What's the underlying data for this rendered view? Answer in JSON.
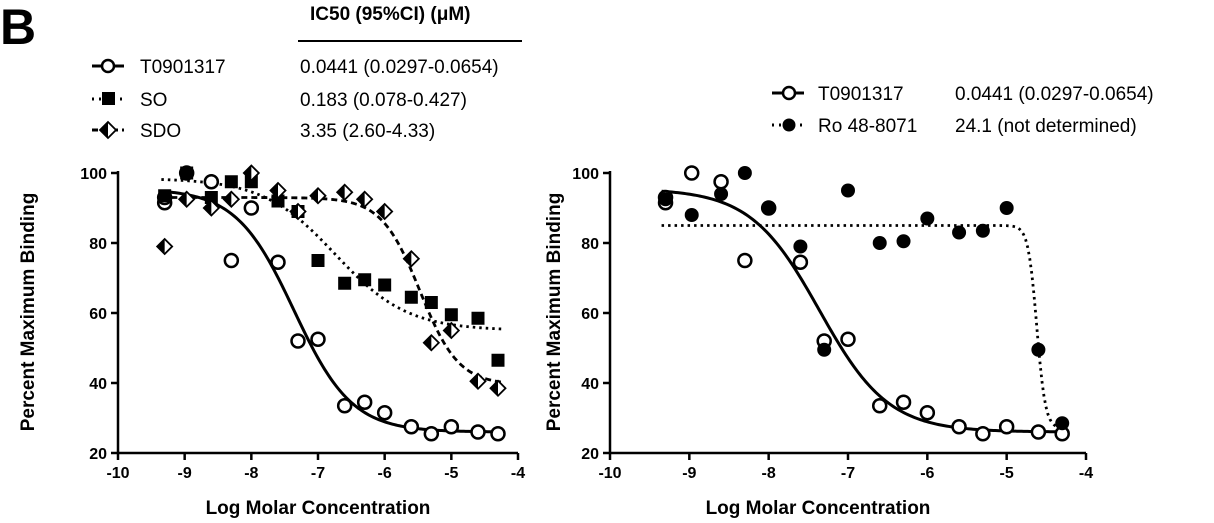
{
  "figure": {
    "panel_label": "B",
    "table_header": "IC50 (95%CI) (μM)"
  },
  "chart_data": [
    {
      "type": "scatter",
      "xlabel": "Log Molar Concentration",
      "ylabel": "Percent Maximum Binding",
      "xlim": [
        -10,
        -4
      ],
      "ylim": [
        20,
        100
      ],
      "xticks": [
        "-10",
        "-9",
        "-8",
        "-7",
        "-6",
        "-5",
        "-4"
      ],
      "yticks": [
        "20",
        "40",
        "60",
        "80",
        "100"
      ],
      "grid": false,
      "legend_position": "top",
      "series": [
        {
          "name": "T0901317",
          "ic50_text": "0.0441 (0.0297-0.0654)",
          "marker": "open-circle",
          "line": "solid",
          "fit": {
            "top": 95.5,
            "bottom": 26.0,
            "logIC50": -7.36,
            "hill": 1.0
          },
          "x": [
            -9.3,
            -9.3,
            -8.97,
            -8.6,
            -8.3,
            -8.0,
            -7.6,
            -7.3,
            -7.0,
            -6.6,
            -6.3,
            -6.0,
            -5.6,
            -5.3,
            -5.0,
            -4.6,
            -4.3
          ],
          "y": [
            91.5,
            93,
            100,
            97.5,
            75,
            90,
            74.5,
            52,
            52.5,
            33.5,
            34.5,
            31.5,
            27.5,
            25.5,
            27.5,
            26,
            25.5
          ]
        },
        {
          "name": "SO",
          "ic50_text": "0.183 (0.078-0.427)",
          "marker": "filled-square",
          "line": "dotted",
          "fit": {
            "top": 98.5,
            "bottom": 55.0,
            "logIC50": -6.74,
            "hill": 0.8
          },
          "x": [
            -9.3,
            -8.97,
            -8.6,
            -8.3,
            -8.0,
            -7.6,
            -7.3,
            -7.0,
            -6.6,
            -6.3,
            -6.0,
            -5.6,
            -5.3,
            -5.0,
            -4.6,
            -4.3
          ],
          "y": [
            93.5,
            100,
            93,
            97.5,
            97.5,
            92,
            89,
            75,
            68.5,
            69.5,
            68,
            64.5,
            63,
            59.5,
            58.5,
            46.5
          ]
        },
        {
          "name": "SDO",
          "ic50_text": "3.35 (2.60-4.33)",
          "marker": "half-filled-diamond",
          "line": "dashed",
          "fit": {
            "top": 93.0,
            "bottom": 39.5,
            "logIC50": -5.47,
            "hill": 1.5
          },
          "x": [
            -9.3,
            -8.97,
            -8.6,
            -8.3,
            -8.0,
            -7.6,
            -7.3,
            -7.0,
            -6.6,
            -6.3,
            -6.0,
            -5.6,
            -5.3,
            -5.0,
            -4.6,
            -4.3
          ],
          "y": [
            79,
            92.5,
            90,
            92.5,
            100,
            95,
            89,
            93.5,
            94.5,
            92.5,
            89,
            75.5,
            51.5,
            55,
            40.5,
            38.5
          ]
        }
      ]
    },
    {
      "type": "scatter",
      "xlabel": "Log Molar Concentration",
      "ylabel": "Percent Maximum Binding",
      "xlim": [
        -10,
        -4
      ],
      "ylim": [
        20,
        100
      ],
      "xticks": [
        "-10",
        "-9",
        "-8",
        "-7",
        "-6",
        "-5",
        "-4"
      ],
      "yticks": [
        "20",
        "40",
        "60",
        "80",
        "100"
      ],
      "grid": false,
      "legend_position": "top-right",
      "series": [
        {
          "name": "T0901317",
          "ic50_text": "0.0441 (0.0297-0.0654)",
          "marker": "open-circle",
          "line": "solid",
          "fit": {
            "top": 95.5,
            "bottom": 26.0,
            "logIC50": -7.36,
            "hill": 1.0
          },
          "x": [
            -9.3,
            -9.3,
            -8.97,
            -8.6,
            -8.3,
            -8.0,
            -7.6,
            -7.3,
            -7.0,
            -6.6,
            -6.3,
            -6.0,
            -5.6,
            -5.3,
            -5.0,
            -4.6,
            -4.3
          ],
          "y": [
            91.5,
            93,
            100,
            97.5,
            75,
            90,
            74.5,
            52,
            52.5,
            33.5,
            34.5,
            31.5,
            27.5,
            25.5,
            27.5,
            26,
            25.5
          ]
        },
        {
          "name": "Ro 48-8071",
          "ic50_text": "24.1 (not determined)",
          "marker": "filled-circle",
          "line": "dotted",
          "fit": {
            "top": 85.0,
            "bottom": 27.0,
            "logIC50": -4.62,
            "hill": 8.0
          },
          "x": [
            -9.3,
            -8.97,
            -8.6,
            -8.3,
            -8.0,
            -7.6,
            -7.3,
            -7.0,
            -6.6,
            -6.3,
            -6.0,
            -5.6,
            -5.3,
            -5.0,
            -4.6,
            -4.3
          ],
          "y": [
            92.5,
            88,
            94,
            100,
            90,
            79,
            49.5,
            95,
            80,
            80.5,
            87,
            83,
            83.5,
            90,
            49.5,
            28.5
          ]
        }
      ]
    }
  ]
}
